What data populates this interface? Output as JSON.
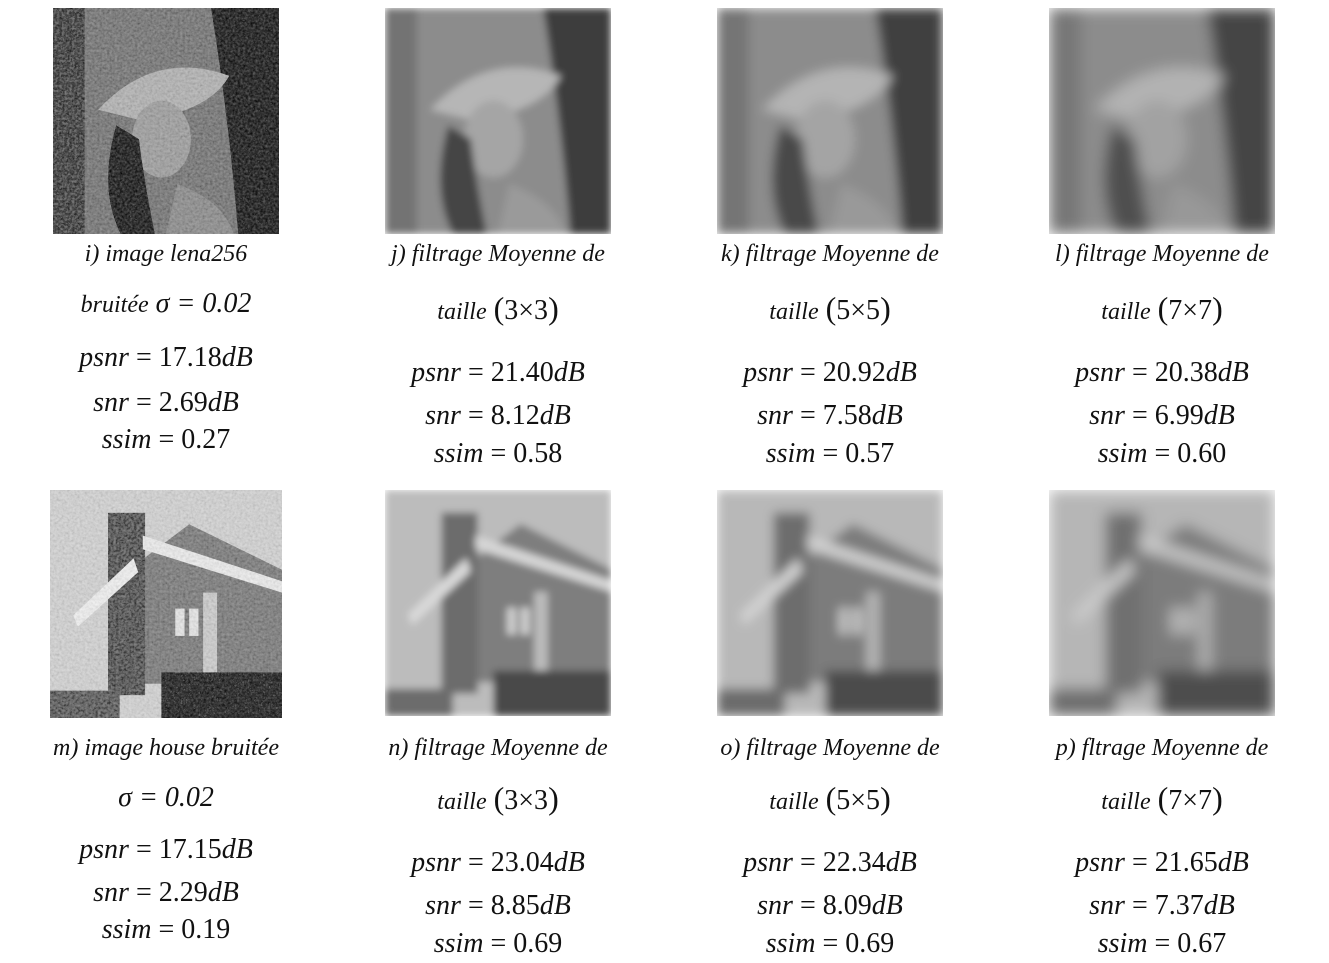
{
  "rows": [
    {
      "subject": "lena",
      "cells": [
        {
          "caption": "i) image lena256",
          "line2_text": "bruitée",
          "line2_math": "σ = 0.02",
          "psnr": "17.18",
          "snr": "2.69",
          "ssim": "0.27",
          "style": "noisy"
        },
        {
          "caption": "j) filtrage Moyenne de",
          "line2_text": "taille",
          "line2_math": "3×3",
          "psnr": "21.40",
          "snr": "8.12",
          "ssim": "0.58",
          "style": "blur3"
        },
        {
          "caption": "k) filtrage  Moyenne de",
          "line2_text": "taille",
          "line2_math": "5×5",
          "psnr": "20.92",
          "snr": "7.58",
          "ssim": "0.57",
          "style": "blur5"
        },
        {
          "caption": "l) filtrage Moyenne de",
          "line2_text": "taille",
          "line2_math": "7×7",
          "psnr": "20.38",
          "snr": "6.99",
          "ssim": "0.60",
          "style": "blur7"
        }
      ]
    },
    {
      "subject": "house",
      "cells": [
        {
          "caption": "m) image  house bruitée",
          "line2_text": "",
          "line2_math": "σ = 0.02",
          "psnr": "17.15",
          "snr": "2.29",
          "ssim": "0.19",
          "style": "noisy"
        },
        {
          "caption": "n) filtrage Moyenne de",
          "line2_text": "taille",
          "line2_math": "3×3",
          "psnr": "23.04",
          "snr": "8.85",
          "ssim": "0.69",
          "style": "blur3"
        },
        {
          "caption": "o) filtrage Moyenne de",
          "line2_text": "taille",
          "line2_math": "5×5",
          "psnr": "22.34",
          "snr": "8.09",
          "ssim": "0.69",
          "style": "blur5"
        },
        {
          "caption": "p)  fltrage Moyenne de",
          "line2_text": "taille",
          "line2_math": "7×7",
          "psnr": "21.65",
          "snr": "7.37",
          "ssim": "0.67",
          "style": "blur7"
        }
      ]
    }
  ],
  "labels": {
    "psnr": "psnr",
    "snr": "snr",
    "ssim": "ssim",
    "unit": "dB"
  }
}
